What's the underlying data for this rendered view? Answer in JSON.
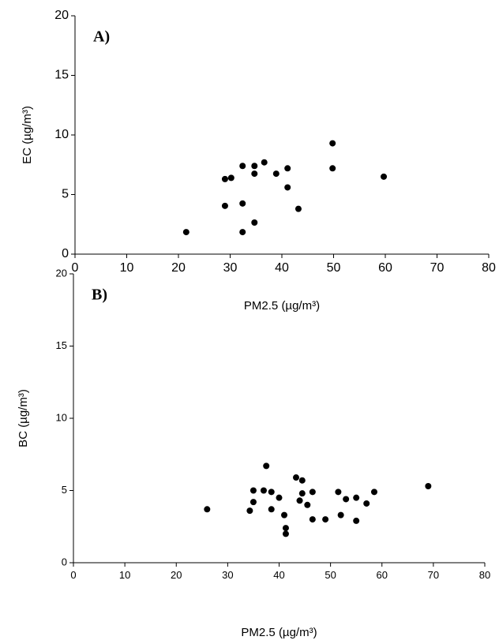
{
  "chart_data": [
    {
      "type": "scatter",
      "annotation": "A)",
      "x_label": "PM2.5 (µg/m³)",
      "y_label": "EC (µg/m³)",
      "color": "#000000",
      "x": [
        21.5,
        29.0,
        29.0,
        30.2,
        32.4,
        32.4,
        32.4,
        34.7,
        34.7,
        34.7,
        36.6,
        38.9,
        41.1,
        41.1,
        43.2,
        49.8,
        49.8,
        59.7
      ],
      "y": [
        1.85,
        6.3,
        4.05,
        6.4,
        7.4,
        4.25,
        1.85,
        7.4,
        6.75,
        2.65,
        7.7,
        6.75,
        7.2,
        5.6,
        3.8,
        9.3,
        7.2,
        6.5
      ],
      "xlim": [
        0,
        80
      ],
      "xticks": [
        0,
        10,
        20,
        30,
        40,
        50,
        60,
        70,
        80
      ],
      "ylim": [
        0,
        20
      ],
      "yticks": [
        0,
        5,
        10,
        15,
        20
      ]
    },
    {
      "type": "scatter",
      "annotation": "B)",
      "x_label": "PM2.5 (µg/m³)",
      "y_label": "BC (µg/m³)",
      "color": "#000000",
      "x": [
        26,
        34.3,
        35,
        35,
        37,
        37.5,
        38.5,
        38.5,
        40,
        41,
        41.3,
        41.3,
        43.3,
        44,
        44.5,
        44.5,
        45.5,
        46.5,
        46.5,
        49,
        51.5,
        52,
        53,
        55,
        55,
        57,
        58.5,
        69
      ],
      "y": [
        3.7,
        3.6,
        5.0,
        4.2,
        5.0,
        6.7,
        4.9,
        3.7,
        4.5,
        3.3,
        2.4,
        2.0,
        5.9,
        4.3,
        5.7,
        4.8,
        4.0,
        4.9,
        3.0,
        3.0,
        4.9,
        3.3,
        4.4,
        4.5,
        2.9,
        4.1,
        4.9,
        5.3
      ],
      "xlim": [
        0,
        80
      ],
      "xticks": [
        0,
        10,
        20,
        30,
        40,
        50,
        60,
        70,
        80
      ],
      "ylim": [
        0,
        20
      ],
      "yticks": [
        0,
        5,
        10,
        15,
        20
      ]
    }
  ]
}
